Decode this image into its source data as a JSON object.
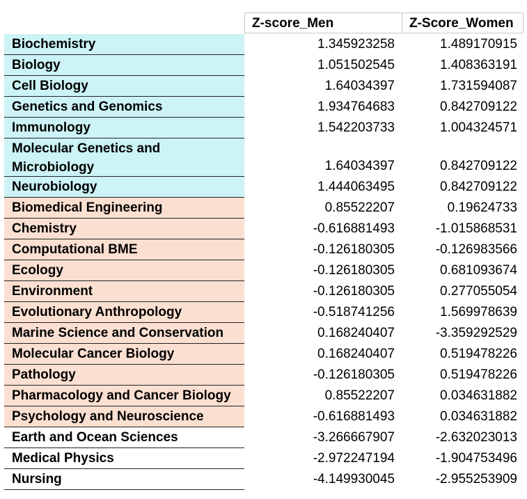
{
  "headers": {
    "men": "Z-score_Men",
    "women": "Z-Score_Women"
  },
  "rows": [
    {
      "name": "Biochemistry",
      "men": "1.345923258",
      "women": "1.489170915",
      "group": "blue"
    },
    {
      "name": "Biology",
      "men": "1.051502545",
      "women": "1.408363191",
      "group": "blue"
    },
    {
      "name": "Cell Biology",
      "men": "1.64034397",
      "women": "1.731594087",
      "group": "blue"
    },
    {
      "name": "Genetics and Genomics",
      "men": "1.934764683",
      "women": "0.842709122",
      "group": "blue"
    },
    {
      "name": "Immunology",
      "men": "1.542203733",
      "women": "1.004324571",
      "group": "blue"
    },
    {
      "name": "Molecular Genetics and Microbiology",
      "men": "1.64034397",
      "women": "0.842709122",
      "group": "blue"
    },
    {
      "name": "Neurobiology",
      "men": "1.444063495",
      "women": "0.842709122",
      "group": "blue"
    },
    {
      "name": "Biomedical Engineering",
      "men": "0.85522207",
      "women": "0.19624733",
      "group": "peach"
    },
    {
      "name": "Chemistry",
      "men": "-0.616881493",
      "women": "-1.015868531",
      "group": "peach"
    },
    {
      "name": "Computational BME",
      "men": "-0.126180305",
      "women": "-0.126983566",
      "group": "peach"
    },
    {
      "name": "Ecology",
      "men": "-0.126180305",
      "women": "0.681093674",
      "group": "peach"
    },
    {
      "name": "Environment",
      "men": "-0.126180305",
      "women": "0.277055054",
      "group": "peach"
    },
    {
      "name": "Evolutionary Anthropology",
      "men": "-0.518741256",
      "women": "1.569978639",
      "group": "peach"
    },
    {
      "name": "Marine Science and Conservation",
      "men": "0.168240407",
      "women": "-3.359292529",
      "group": "peach"
    },
    {
      "name": "Molecular Cancer Biology",
      "men": "0.168240407",
      "women": "0.519478226",
      "group": "peach"
    },
    {
      "name": "Pathology",
      "men": "-0.126180305",
      "women": "0.519478226",
      "group": "peach"
    },
    {
      "name": "Pharmacology and Cancer Biology",
      "men": "0.85522207",
      "women": "0.034631882",
      "group": "peach"
    },
    {
      "name": "Psychology and Neuroscience",
      "men": "-0.616881493",
      "women": "0.034631882",
      "group": "peach"
    },
    {
      "name": "Earth and Ocean Sciences",
      "men": "-3.266667907",
      "women": "-2.632023013",
      "group": "plain"
    },
    {
      "name": "Medical Physics",
      "men": "-2.972247194",
      "women": "-1.904753496",
      "group": "plain"
    },
    {
      "name": "Nursing",
      "men": "-4.149930045",
      "women": "-2.955253909",
      "group": "plain"
    }
  ],
  "colors": {
    "blue": "#ccf3f6",
    "peach": "#fbdfd1",
    "plain": "#ffffff"
  }
}
